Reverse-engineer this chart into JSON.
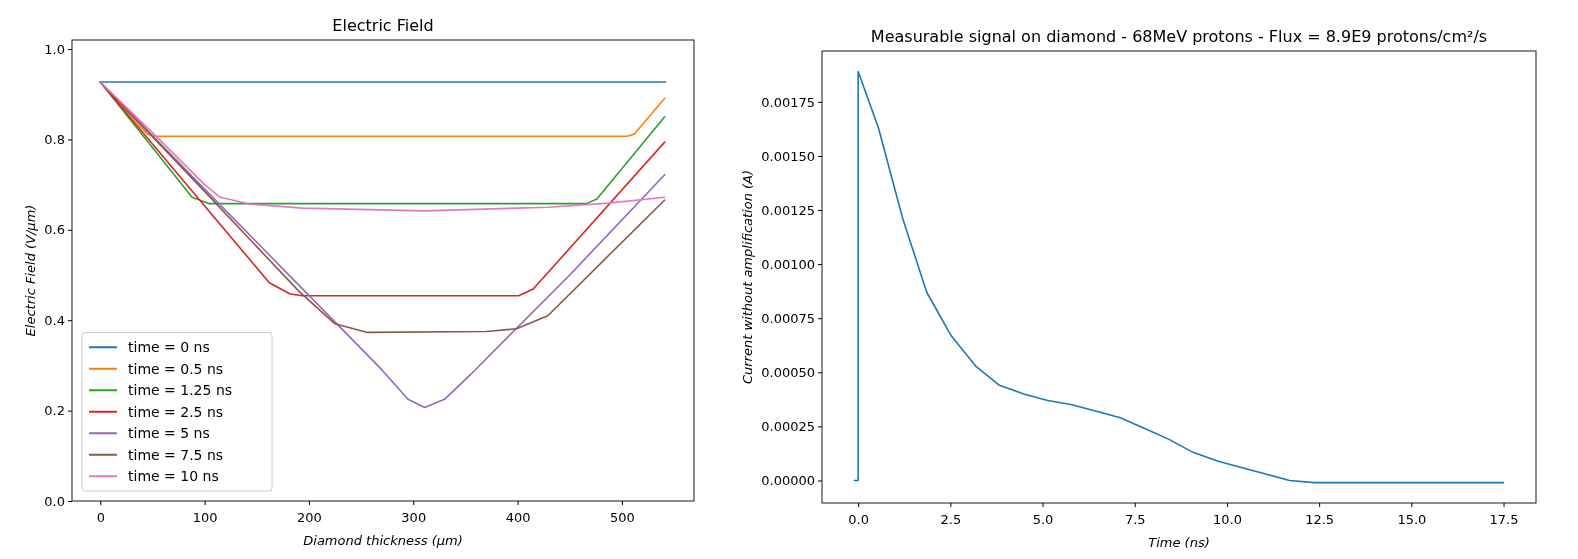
{
  "chart_data": [
    {
      "type": "line",
      "title": "Electric Field",
      "xlabel": "Diamond thickness (μm)",
      "ylabel": "Electric Field (V/μm)",
      "xlim": [
        -27.1,
        569.1
      ],
      "ylim": [
        0,
        1.02
      ],
      "xticks": [
        0,
        100,
        200,
        300,
        400,
        500
      ],
      "yticks": [
        {
          "value": 0,
          "label": "0.0"
        },
        {
          "value": 0.2,
          "label": "0.2"
        },
        {
          "value": 0.4,
          "label": "0.4"
        },
        {
          "value": 0.6,
          "label": "0.6"
        },
        {
          "value": 0.8,
          "label": "0.8"
        },
        {
          "value": 1,
          "label": "1.0"
        }
      ],
      "legend": "bottom left",
      "grid": false,
      "series": [
        {
          "name": "time = 0 ns",
          "color": "#1f77b4",
          "x": [
            0,
            542
          ],
          "values": [
            0.927,
            0.927
          ]
        },
        {
          "name": "time = 0.5 ns",
          "color": "#ff7f0e",
          "x": [
            0,
            45,
            52,
            505,
            512,
            541
          ],
          "values": [
            0.927,
            0.812,
            0.807,
            0.807,
            0.812,
            0.891
          ]
        },
        {
          "name": "time = 1.25 ns",
          "color": "#2ca02c",
          "x": [
            0,
            88,
            104,
            466,
            476,
            541
          ],
          "values": [
            0.927,
            0.672,
            0.658,
            0.658,
            0.668,
            0.85
          ]
        },
        {
          "name": "time = 2.5 ns",
          "color": "#d62728",
          "x": [
            0,
            162,
            182,
            194,
            401,
            415,
            541
          ],
          "values": [
            0.927,
            0.483,
            0.458,
            0.454,
            0.454,
            0.469,
            0.794
          ]
        },
        {
          "name": "time = 5 ns",
          "color": "#9467bd",
          "x": [
            0,
            100,
            200,
            270,
            295,
            311,
            330,
            355,
            450,
            541
          ],
          "values": [
            0.927,
            0.69,
            0.455,
            0.29,
            0.225,
            0.207,
            0.225,
            0.28,
            0.5,
            0.722
          ]
        },
        {
          "name": "time = 7.5 ns",
          "color": "#8c564b",
          "x": [
            0,
            100,
            190,
            225,
            256,
            370,
            399,
            429,
            541
          ],
          "values": [
            0.927,
            0.685,
            0.465,
            0.392,
            0.373,
            0.375,
            0.381,
            0.41,
            0.666
          ]
        },
        {
          "name": "time = 10 ns",
          "color": "#e377c2",
          "x": [
            0,
            50,
            100,
            115,
            143,
            194,
            311,
            429,
            487,
            541
          ],
          "values": [
            0.927,
            0.815,
            0.7,
            0.672,
            0.657,
            0.648,
            0.642,
            0.65,
            0.659,
            0.672
          ]
        }
      ]
    },
    {
      "type": "line",
      "title": "Measurable signal on diamond - 68MeV protons - Flux = 8.9E9 protons/cm²/s",
      "xlabel": "Time (ns)",
      "ylabel": "Current without amplification (A)",
      "xlim": [
        -0.98,
        18.38
      ],
      "ylim": [
        -0.000104,
        0.001985
      ],
      "xticks": [
        {
          "value": 0,
          "label": "0.0"
        },
        2.5,
        {
          "value": 5,
          "label": "5.0"
        },
        7.5,
        {
          "value": 10,
          "label": "10.0"
        },
        12.5,
        {
          "value": 15,
          "label": "15.0"
        },
        17.5
      ],
      "yticks": [
        {
          "value": 0,
          "label": "0.00000"
        },
        {
          "value": 0.00025,
          "label": "0.00025"
        },
        {
          "value": 0.0005,
          "label": "0.00050"
        },
        {
          "value": 0.00075,
          "label": "0.00075"
        },
        {
          "value": 0.001,
          "label": "0.00100"
        },
        {
          "value": 0.00125,
          "label": "0.00125"
        },
        {
          "value": 0.0015,
          "label": "0.00150"
        },
        {
          "value": 0.00175,
          "label": "0.00175"
        }
      ],
      "grid": false,
      "series": [
        {
          "color": "#1f77b4",
          "x": [
            -0.1,
            0,
            0,
            0.55,
            1.21,
            1.86,
            2.52,
            3.18,
            3.83,
            4.49,
            5.14,
            5.8,
            6.46,
            7.11,
            7.77,
            8.43,
            9.08,
            9.74,
            10.39,
            11.05,
            11.7,
            12.36,
            17.5
          ],
          "values": [
            0,
            0,
            0.00189,
            0.00163,
            0.00121,
            0.00087,
            0.00067,
            0.00053,
            0.00044,
            0.0004,
            0.00037,
            0.00035,
            0.00032,
            0.00029,
            0.00024,
            0.00019,
            0.00013,
            9e-05,
            6e-05,
            3e-05,
            0,
            -1e-05,
            -1e-05
          ]
        }
      ]
    }
  ]
}
